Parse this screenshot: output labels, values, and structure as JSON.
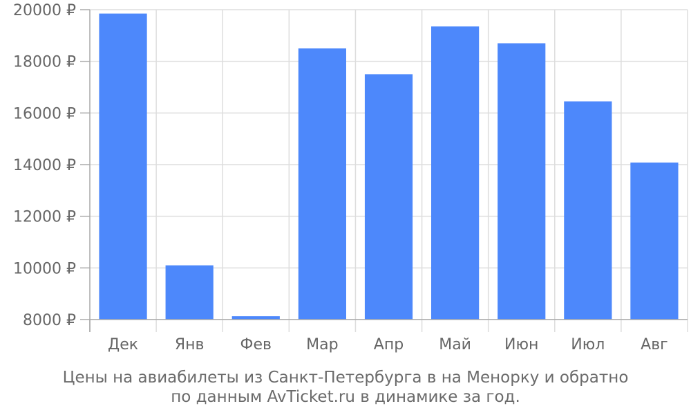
{
  "chart_data": {
    "type": "bar",
    "categories": [
      "Дек",
      "Янв",
      "Фев",
      "Мар",
      "Апр",
      "Май",
      "Июн",
      "Июл",
      "Авг"
    ],
    "values": [
      19850,
      10100,
      8130,
      18500,
      17500,
      19350,
      18700,
      16450,
      14080
    ],
    "ylim": [
      8000,
      20000
    ],
    "yticks": [
      "8000 ₽",
      "10000 ₽",
      "12000 ₽",
      "14000 ₽",
      "16000 ₽",
      "18000 ₽",
      "20000 ₽"
    ],
    "ytick_values": [
      8000,
      10000,
      12000,
      14000,
      16000,
      18000,
      20000
    ],
    "grid": true,
    "bar_color": "#4d88fb",
    "grid_color": "#dddddd",
    "axis_color": "#aaaaaa"
  },
  "caption": {
    "line1": "Цены на авиабилеты из Санкт-Петербурга в на Менорку и обратно",
    "line2": "по данным AvTicket.ru в динамике за год."
  }
}
